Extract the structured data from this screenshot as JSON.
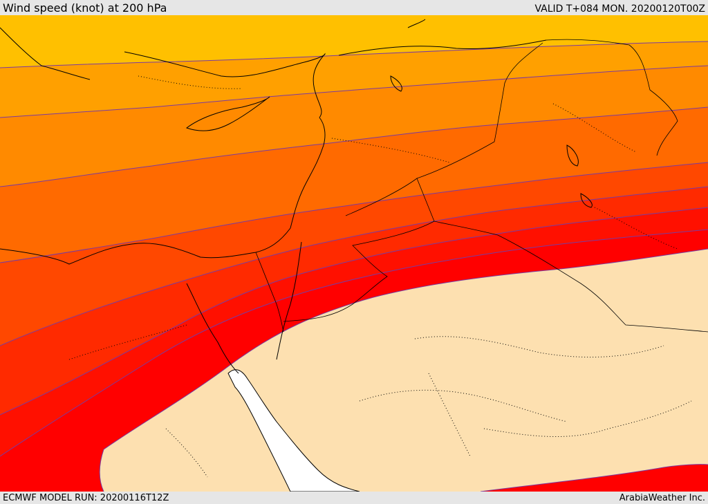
{
  "header": {
    "title": "Wind speed (knot) at 200 hPa",
    "valid_time": "VALID T+084 MON. 20200120T00Z"
  },
  "footer": {
    "model_run": "ECMWF MODEL RUN: 20200116T12Z",
    "credit": "ArabiaWeather Inc."
  },
  "map": {
    "field": "wind speed",
    "level": "200 hPa",
    "units": "knot",
    "colors": {
      "band_1": "#ffc000",
      "band_2": "#ffa000",
      "band_3": "#ff8a00",
      "band_4": "#ff6a00",
      "band_5": "#ff4800",
      "band_6": "#ff2a00",
      "band_7": "#ff1000",
      "band_8": "#ff0000",
      "calm": "#fde0b0",
      "sea": "#ffffff",
      "contour_line": "#7a3aa0",
      "border_line": "#000000"
    }
  }
}
